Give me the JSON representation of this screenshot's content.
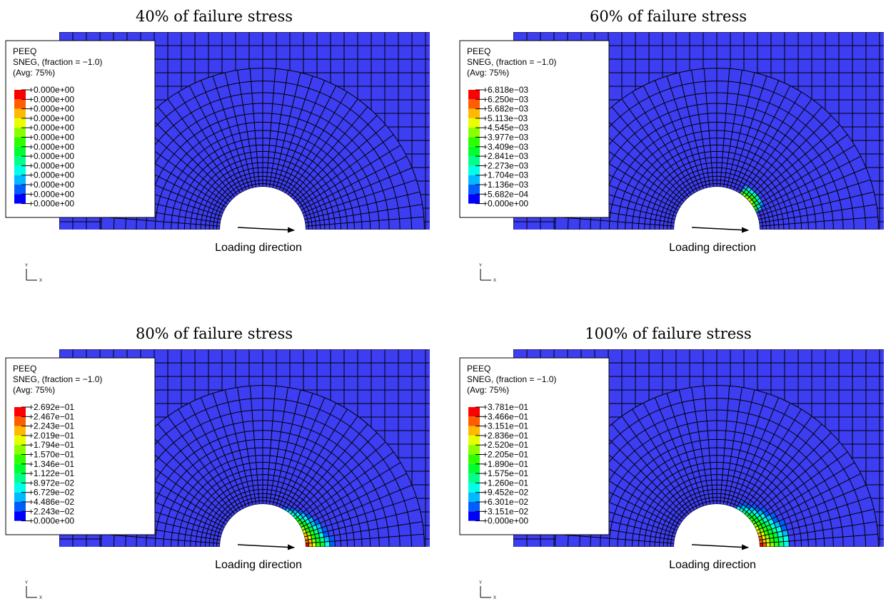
{
  "panels": [
    {
      "title": "40% of failure stress",
      "legend": {
        "title_lines": [
          "PEEQ",
          "SNEG, (fraction = −1.0)",
          "(Avg: 75%)"
        ],
        "labels": [
          "+0.000e+00",
          "+0.000e+00",
          "+0.000e+00",
          "+0.000e+00",
          "+0.000e+00",
          "+0.000e+00",
          "+0.000e+00",
          "+0.000e+00",
          "+0.000e+00",
          "+0.000e+00",
          "+0.000e+00",
          "+0.000e+00",
          "+0.000e+00"
        ]
      },
      "annotation": "Loading direction",
      "triad": {
        "y": "Y",
        "x": "X"
      }
    },
    {
      "title": "60% of failure stress",
      "legend": {
        "title_lines": [
          "PEEQ",
          "SNEG, (fraction = −1.0)",
          "(Avg: 75%)"
        ],
        "labels": [
          "+6.818e−03",
          "+6.250e−03",
          "+5.682e−03",
          "+5.113e−03",
          "+4.545e−03",
          "+3.977e−03",
          "+3.409e−03",
          "+2.841e−03",
          "+2.273e−03",
          "+1.704e−03",
          "+1.136e−03",
          "+5.682e−04",
          "+0.000e+00"
        ]
      },
      "annotation": "Loading direction",
      "triad": {
        "y": "Y",
        "x": "X"
      }
    },
    {
      "title": "80% of failure stress",
      "legend": {
        "title_lines": [
          "PEEQ",
          "SNEG, (fraction = −1.0)",
          "(Avg: 75%)"
        ],
        "labels": [
          "+2.692e−01",
          "+2.467e−01",
          "+2.243e−01",
          "+2.019e−01",
          "+1.794e−01",
          "+1.570e−01",
          "+1.346e−01",
          "+1.122e−01",
          "+8.972e−02",
          "+6.729e−02",
          "+4.486e−02",
          "+2.243e−02",
          "+0.000e+00"
        ]
      },
      "annotation": "Loading direction",
      "triad": {
        "y": "Y",
        "x": "X"
      }
    },
    {
      "title": "100% of failure stress",
      "legend": {
        "title_lines": [
          "PEEQ",
          "SNEG, (fraction = −1.0)",
          "(Avg: 75%)"
        ],
        "labels": [
          "+3.781e−01",
          "+3.466e−01",
          "+3.151e−01",
          "+2.836e−01",
          "+2.520e−01",
          "+2.205e−01",
          "+1.890e−01",
          "+1.575e−01",
          "+1.260e−01",
          "+9.452e−02",
          "+6.301e−02",
          "+3.151e−02",
          "+0.000e+00"
        ]
      },
      "annotation": "Loading direction",
      "triad": {
        "y": "Y",
        "x": "X"
      }
    }
  ]
}
